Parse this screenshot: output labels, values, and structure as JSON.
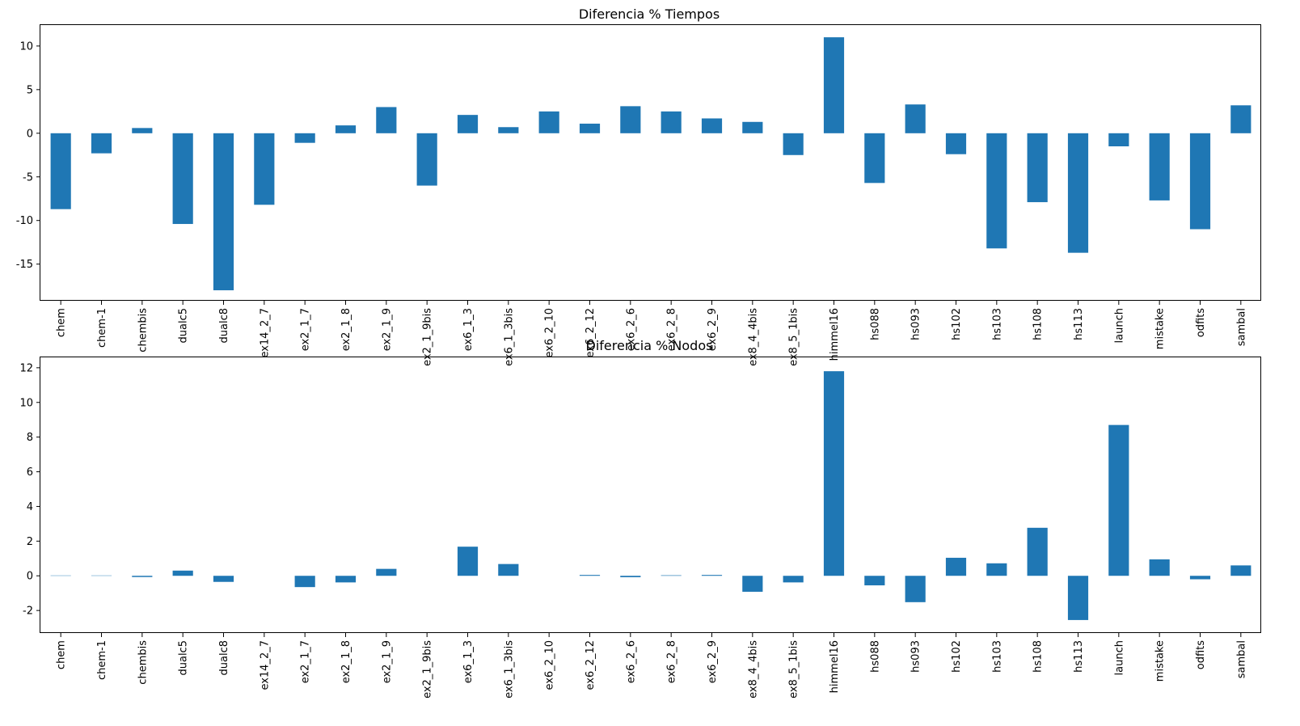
{
  "chart_data": [
    {
      "type": "bar",
      "title": "Diferencia % Tiempos",
      "xlabel": "",
      "ylabel": "",
      "ylim": [
        -19.2,
        12.4
      ],
      "yticks": [
        -15,
        -10,
        -5,
        0,
        5,
        10
      ],
      "grid": false,
      "legend": "none",
      "bar_color": "#1f77b4",
      "categories": [
        "chem",
        "chem-1",
        "chembis",
        "dualc5",
        "dualc8",
        "ex14_2_7",
        "ex2_1_7",
        "ex2_1_8",
        "ex2_1_9",
        "ex2_1_9bis",
        "ex6_1_3",
        "ex6_1_3bis",
        "ex6_2_10",
        "ex6_2_12",
        "ex6_2_6",
        "ex6_2_8",
        "ex6_2_9",
        "ex8_4_4bis",
        "ex8_5_1bis",
        "himmel16",
        "hs088",
        "hs093",
        "hs102",
        "hs103",
        "hs108",
        "hs113",
        "launch",
        "mistake",
        "odfits",
        "sambal"
      ],
      "values": [
        -8.7,
        -2.3,
        0.6,
        -10.4,
        -18.0,
        -8.2,
        -1.1,
        0.9,
        3.0,
        -6.0,
        2.1,
        0.7,
        2.5,
        1.1,
        3.1,
        2.5,
        1.7,
        1.3,
        -2.5,
        11.0,
        -5.7,
        3.3,
        -2.4,
        -13.2,
        -7.9,
        -13.7,
        -1.5,
        -7.7,
        -11.0,
        3.2
      ]
    },
    {
      "type": "bar",
      "title": "Diferencia % Nodos",
      "xlabel": "",
      "ylabel": "",
      "ylim": [
        -3.3,
        12.6
      ],
      "yticks": [
        -2,
        0,
        2,
        4,
        6,
        8,
        10,
        12
      ],
      "grid": false,
      "legend": "none",
      "bar_color": "#1f77b4",
      "categories": [
        "chem",
        "chem-1",
        "chembis",
        "dualc5",
        "dualc8",
        "ex14_2_7",
        "ex2_1_7",
        "ex2_1_8",
        "ex2_1_9",
        "ex2_1_9bis",
        "ex6_1_3",
        "ex6_1_3bis",
        "ex6_2_10",
        "ex6_2_12",
        "ex6_2_6",
        "ex6_2_8",
        "ex6_2_9",
        "ex8_4_4bis",
        "ex8_5_1bis",
        "himmel16",
        "hs088",
        "hs093",
        "hs102",
        "hs103",
        "hs108",
        "hs113",
        "launch",
        "mistake",
        "odfits",
        "sambal"
      ],
      "values": [
        0.02,
        0.02,
        -0.07,
        0.3,
        -0.35,
        0.0,
        -0.65,
        -0.38,
        0.4,
        0.0,
        1.68,
        0.68,
        0.0,
        0.05,
        -0.08,
        0.03,
        0.05,
        -0.92,
        -0.38,
        11.8,
        -0.55,
        -1.52,
        1.04,
        0.72,
        2.77,
        -2.55,
        8.7,
        0.95,
        -0.2,
        0.6
      ]
    }
  ]
}
